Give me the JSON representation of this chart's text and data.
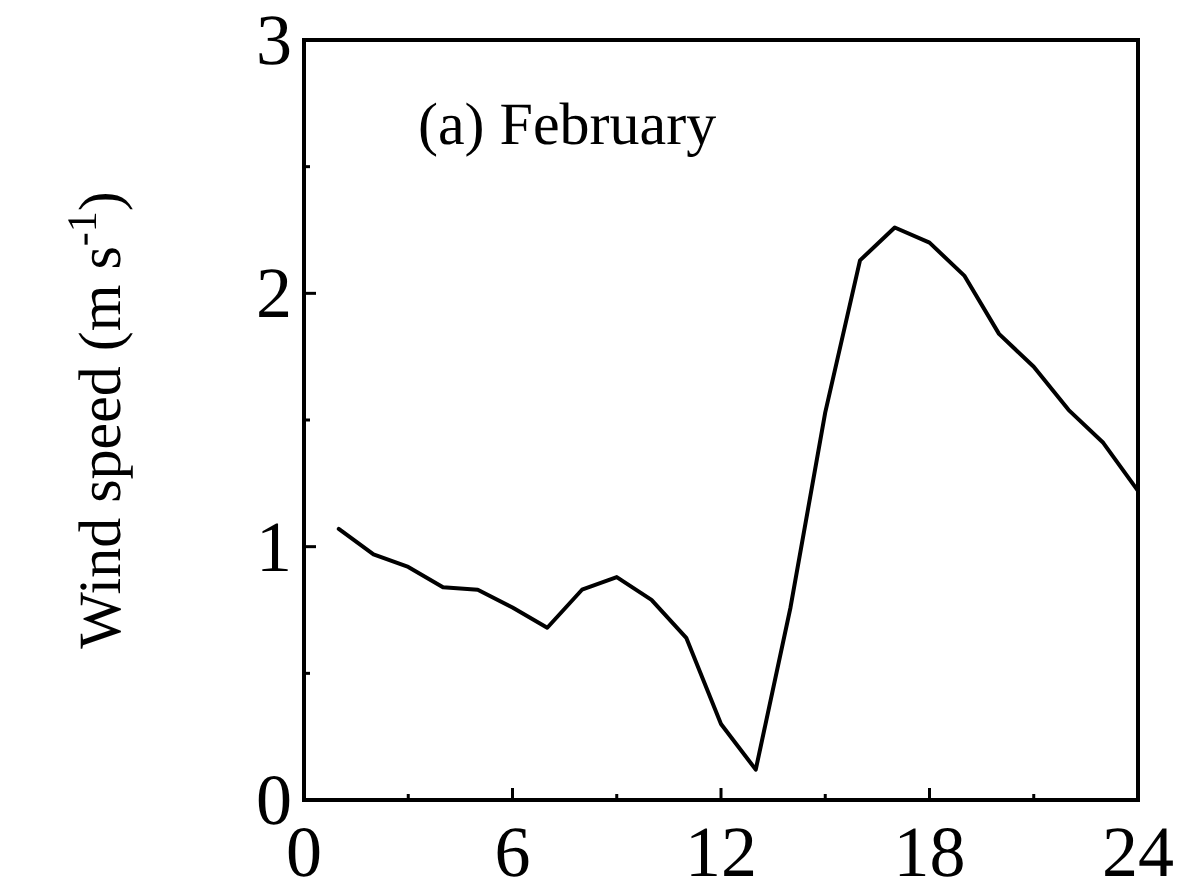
{
  "chart_data": {
    "type": "line",
    "title": "(a) February",
    "ylabel": "Wind speed (m s$^{-1}$)",
    "x": [
      1,
      2,
      3,
      4,
      5,
      6,
      7,
      8,
      9,
      10,
      11,
      12,
      13,
      14,
      15,
      16,
      17,
      18,
      19,
      20,
      21,
      22,
      23,
      24
    ],
    "series": [
      {
        "color": "#000000",
        "values": [
          1.07,
          0.97,
          0.92,
          0.84,
          0.83,
          0.76,
          0.68,
          0.83,
          0.88,
          0.79,
          0.64,
          0.3,
          0.12,
          0.76,
          1.53,
          2.13,
          2.26,
          2.2,
          2.07,
          1.84,
          1.71,
          1.54,
          1.41,
          1.22
        ]
      }
    ],
    "xlim": [
      0,
      24
    ],
    "xticks": [
      0,
      {
        "value": 3,
        "label": null
      },
      6,
      {
        "value": 9,
        "label": null
      },
      12,
      {
        "value": 15,
        "label": null
      },
      18,
      {
        "value": 21,
        "label": null
      },
      24
    ],
    "ylim": [
      0,
      3
    ],
    "yticks": [
      0,
      {
        "value": 0.5,
        "label": null
      },
      1,
      {
        "value": 1.5,
        "label": null
      },
      2,
      {
        "value": 2.5,
        "label": null
      },
      3
    ],
    "grid": false,
    "marker": "none",
    "line_style": "solid"
  }
}
